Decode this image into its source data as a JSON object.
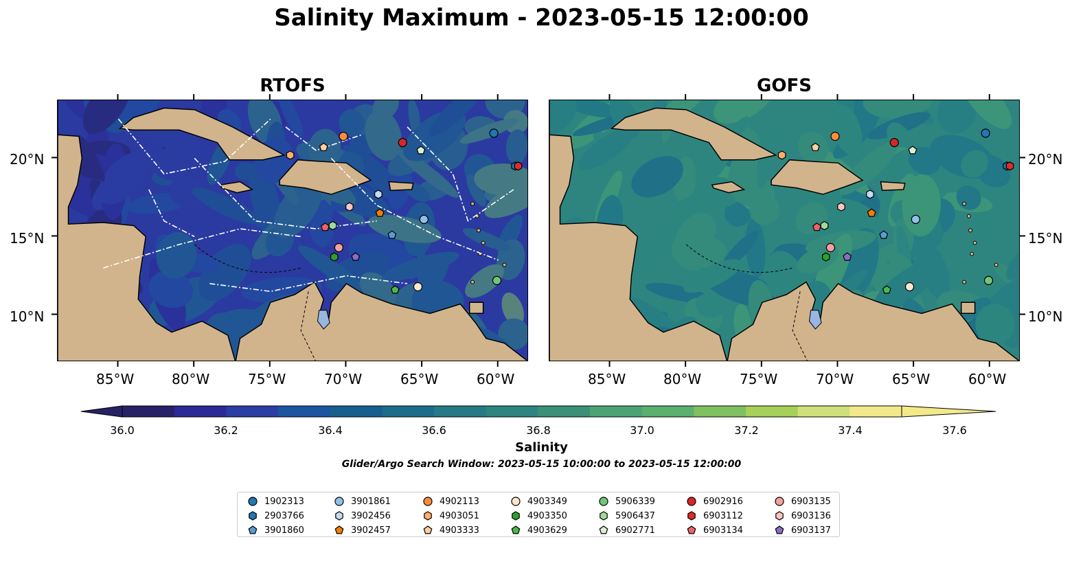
{
  "figure": {
    "title": "Salinity Maximum - 2023-05-15 12:00:00",
    "panels": [
      {
        "title": "RTOFS",
        "model": "rtofs"
      },
      {
        "title": "GOFS",
        "model": "gofs"
      }
    ],
    "lon_ticks": [
      "85°W",
      "80°W",
      "75°W",
      "70°W",
      "65°W",
      "60°W"
    ],
    "lat_ticks": [
      "20°N",
      "15°N",
      "10°N"
    ],
    "extent": {
      "lon_min": -89,
      "lon_max": -58,
      "lat_min": 7,
      "lat_max": 23.7
    },
    "lon_tick_values": [
      -85,
      -80,
      -75,
      -70,
      -65,
      -60
    ],
    "lat_tick_values": [
      20,
      15,
      10
    ],
    "colorbar": {
      "label": "Salinity",
      "tick_labels": [
        "36.0",
        "36.2",
        "36.4",
        "36.6",
        "36.8",
        "37.0",
        "37.2",
        "37.4",
        "37.6"
      ],
      "min": 35.9,
      "max": 37.6,
      "step": 0.1,
      "colors": [
        "#272266",
        "#2c2a96",
        "#2b3ea3",
        "#1c55a0",
        "#165f8f",
        "#1b6d8b",
        "#267a85",
        "#2e8580",
        "#3b9178",
        "#4ba373",
        "#5bb06f",
        "#7fc060",
        "#a6d058",
        "#cfe07a",
        "#f3e98a"
      ],
      "extend": "both"
    },
    "search_window": "Glider/Argo Search Window: 2023-05-15 10:00:00 to 2023-05-15 12:00:00",
    "land_color": "#d2b48c",
    "lake_color": "#97b6e1"
  },
  "floats": [
    {
      "id": "1902313",
      "marker": "circle",
      "color": "#1f77b4",
      "lon": -60.3,
      "lat": 21.6
    },
    {
      "id": "2903766",
      "marker": "hexagon",
      "color": "#1f77b4",
      "lon": -58.9,
      "lat": 19.5
    },
    {
      "id": "3901860",
      "marker": "pentagon",
      "color": "#5b9bd5",
      "lon": -67.0,
      "lat": 15.1
    },
    {
      "id": "3901861",
      "marker": "circle",
      "color": "#8ec1ea",
      "lon": -64.9,
      "lat": 16.1
    },
    {
      "id": "3902456",
      "marker": "hexagon",
      "color": "#c6dbef",
      "lon": -67.9,
      "lat": 17.7
    },
    {
      "id": "3902457",
      "marker": "pentagon",
      "color": "#f57c00",
      "lon": -67.8,
      "lat": 16.5
    },
    {
      "id": "4902113",
      "marker": "circle",
      "color": "#fd8d3c",
      "lon": -70.2,
      "lat": 21.4
    },
    {
      "id": "4903051",
      "marker": "hexagon",
      "color": "#fdae6b",
      "lon": -73.7,
      "lat": 20.2
    },
    {
      "id": "4903333",
      "marker": "pentagon",
      "color": "#fdd0a2",
      "lon": -71.5,
      "lat": 20.7
    },
    {
      "id": "4903349",
      "marker": "circle",
      "color": "#fee6ce",
      "lon": -65.3,
      "lat": 11.8
    },
    {
      "id": "4903350",
      "marker": "hexagon",
      "color": "#2ca02c",
      "lon": -70.8,
      "lat": 13.7
    },
    {
      "id": "4903629",
      "marker": "pentagon",
      "color": "#4cb84c",
      "lon": -66.8,
      "lat": 11.6
    },
    {
      "id": "5906339",
      "marker": "circle",
      "color": "#74c476",
      "lon": -60.1,
      "lat": 12.2
    },
    {
      "id": "5906437",
      "marker": "hexagon",
      "color": "#a1d99b",
      "lon": -70.9,
      "lat": 15.7
    },
    {
      "id": "6902771",
      "marker": "pentagon",
      "color": "#d9f0d3",
      "lon": -65.1,
      "lat": 20.5
    },
    {
      "id": "6902916",
      "marker": "circle",
      "color": "#d62728",
      "lon": -66.3,
      "lat": 21.0
    },
    {
      "id": "6903112",
      "marker": "hexagon",
      "color": "#de2d26",
      "lon": -58.7,
      "lat": 19.5
    },
    {
      "id": "6903134",
      "marker": "pentagon",
      "color": "#f0616b",
      "lon": -71.4,
      "lat": 15.6
    },
    {
      "id": "6903135",
      "marker": "circle",
      "color": "#f4a0a0",
      "lon": -70.5,
      "lat": 14.3
    },
    {
      "id": "6903136",
      "marker": "hexagon",
      "color": "#fcc5c0",
      "lon": -69.8,
      "lat": 16.9
    },
    {
      "id": "6903137",
      "marker": "pentagon",
      "color": "#8c6bc8",
      "lon": -69.4,
      "lat": 13.7
    }
  ]
}
